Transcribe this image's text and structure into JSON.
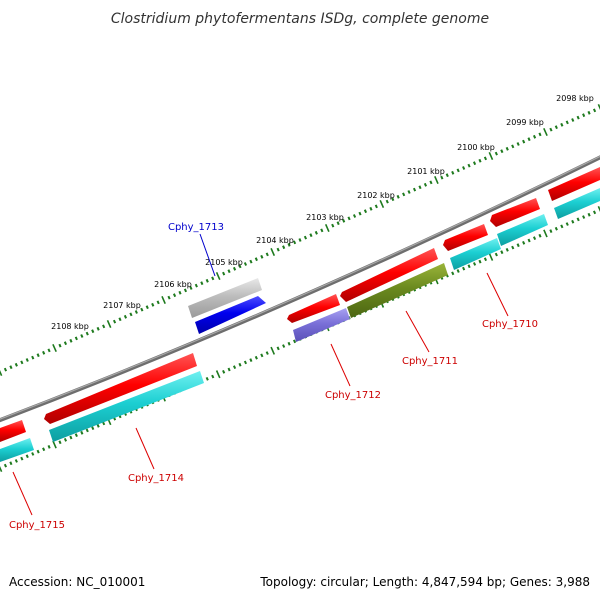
{
  "title": "Clostridium phytofermentans ISDg, complete genome",
  "footer": {
    "accession": "Accession: NC_010001",
    "summary": "Topology: circular; Length: 4,847,594 bp; Genes: 3,988"
  },
  "colors": {
    "backbone": "#7a7a7a",
    "tick": "#1e7a1e",
    "label_red": "#cc0000",
    "label_blue": "#0000cc"
  },
  "ruler": [
    {
      "label": "2098 kbp",
      "kbp": 2098
    },
    {
      "label": "2099 kbp",
      "kbp": 2099
    },
    {
      "label": "2100 kbp",
      "kbp": 2100
    },
    {
      "label": "2101 kbp",
      "kbp": 2101
    },
    {
      "label": "2102 kbp",
      "kbp": 2102
    },
    {
      "label": "2103 kbp",
      "kbp": 2103
    },
    {
      "label": "2104 kbp",
      "kbp": 2104
    },
    {
      "label": "2105 kbp",
      "kbp": 2105
    },
    {
      "label": "2106 kbp",
      "kbp": 2106
    },
    {
      "label": "2107 kbp",
      "kbp": 2107
    },
    {
      "label": "2108 kbp",
      "kbp": 2108
    }
  ],
  "genes": [
    {
      "label": "Cphy_1710",
      "color": "#cc0000"
    },
    {
      "label": "Cphy_1711",
      "color": "#cc0000"
    },
    {
      "label": "Cphy_1712",
      "color": "#cc0000"
    },
    {
      "label": "Cphy_1713",
      "color": "#0000cc"
    },
    {
      "label": "Cphy_1714",
      "color": "#cc0000"
    },
    {
      "label": "Cphy_1715",
      "color": "#cc0000"
    }
  ]
}
